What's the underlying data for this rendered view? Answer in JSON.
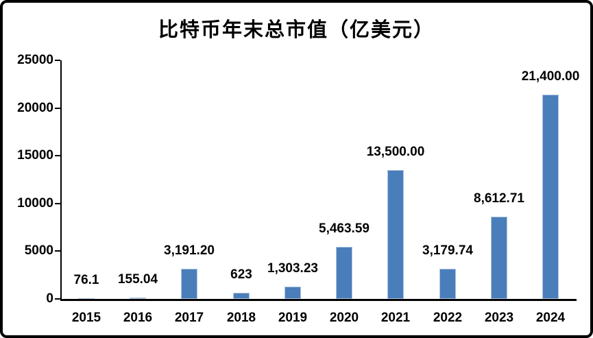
{
  "chart_data": {
    "type": "bar",
    "title": "比特币年末总市值（亿美元）",
    "categories": [
      "2015",
      "2016",
      "2017",
      "2018",
      "2019",
      "2020",
      "2021",
      "2022",
      "2023",
      "2024"
    ],
    "values": [
      76.1,
      155.04,
      3191.2,
      623,
      1303.23,
      5463.59,
      13500.0,
      3179.74,
      8612.71,
      21400.0
    ],
    "value_labels": [
      "76.1",
      "155.04",
      "3,191.20",
      "623",
      "1,303.23",
      "5,463.59",
      "13,500.00",
      "3,179.74",
      "8,612.71",
      "21,400.00"
    ],
    "xlabel": "",
    "ylabel": "",
    "ylim": [
      0,
      25000
    ],
    "yticks": [
      0,
      5000,
      10000,
      15000,
      20000,
      25000
    ],
    "grid": false,
    "legend": "none",
    "bar_color": "#4A7EBB",
    "bar_edge_highlight": "#AFCBE8",
    "axis_color": "#000000",
    "text_color": "#000000",
    "frame_border_color": "#000000",
    "background_color": "#FFFFFF"
  }
}
